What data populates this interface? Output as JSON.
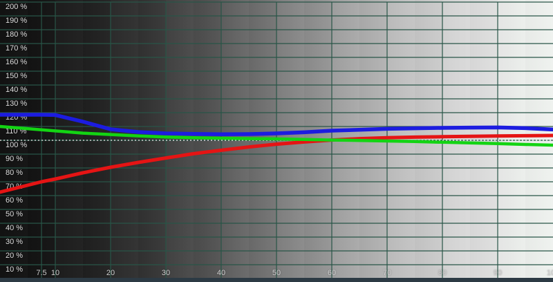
{
  "chart_data": {
    "type": "line",
    "title": "",
    "xlabel": "",
    "ylabel": "",
    "xlim": [
      0,
      100
    ],
    "ylim": [
      0,
      200
    ],
    "grid": true,
    "legend_position": "none",
    "reference_line_pct": 100,
    "x": [
      0,
      7.5,
      10,
      15,
      20,
      25,
      30,
      35,
      40,
      45,
      50,
      55,
      60,
      65,
      70,
      75,
      80,
      85,
      90,
      95,
      100
    ],
    "series": [
      {
        "name": "red",
        "color": "#e51414",
        "values": [
          62.5,
          70,
          72,
          76.5,
          80.5,
          84,
          87.2,
          90.3,
          92.8,
          95.2,
          97.2,
          98.8,
          100.2,
          101.2,
          101.9,
          102.3,
          102.6,
          102.9,
          103.1,
          103.3,
          103.5
        ]
      },
      {
        "name": "green",
        "color": "#13d413",
        "values": [
          110,
          107.6,
          106.8,
          105.2,
          104.2,
          103.2,
          102.4,
          101.9,
          101.5,
          101.2,
          101,
          100.6,
          100.2,
          99.9,
          99.5,
          99.1,
          98.6,
          98.1,
          97.6,
          97,
          96.5
        ]
      },
      {
        "name": "blue",
        "color": "#1c1ce0",
        "values": [
          118.5,
          118.5,
          118.3,
          113.5,
          108,
          106,
          105,
          104.6,
          104.4,
          104.5,
          105,
          105.8,
          107,
          107.6,
          108.3,
          108.7,
          109,
          109.2,
          109.3,
          108.8,
          107.8
        ]
      }
    ],
    "y_axis": {
      "ticks": [
        {
          "v": 200,
          "label": "200 %"
        },
        {
          "v": 190,
          "label": "190 %"
        },
        {
          "v": 180,
          "label": "180 %"
        },
        {
          "v": 170,
          "label": "170 %"
        },
        {
          "v": 160,
          "label": "160 %"
        },
        {
          "v": 150,
          "label": "150 %"
        },
        {
          "v": 140,
          "label": "140 %"
        },
        {
          "v": 130,
          "label": "130 %"
        },
        {
          "v": 120,
          "label": "120 %"
        },
        {
          "v": 110,
          "label": "110 %"
        },
        {
          "v": 100,
          "label": "100 %"
        },
        {
          "v": 90,
          "label": "90 %"
        },
        {
          "v": 80,
          "label": "80 %"
        },
        {
          "v": 70,
          "label": "70 %"
        },
        {
          "v": 60,
          "label": "60 %"
        },
        {
          "v": 50,
          "label": "50 %"
        },
        {
          "v": 40,
          "label": "40 %"
        },
        {
          "v": 30,
          "label": "30 %"
        },
        {
          "v": 20,
          "label": "20 %"
        },
        {
          "v": 10,
          "label": "10 %"
        }
      ]
    },
    "x_axis": {
      "ticks": [
        {
          "v": 7.5,
          "label": "7.5"
        },
        {
          "v": 10,
          "label": "10"
        },
        {
          "v": 20,
          "label": "20"
        },
        {
          "v": 30,
          "label": "30"
        },
        {
          "v": 40,
          "label": "40"
        },
        {
          "v": 50,
          "label": "50"
        },
        {
          "v": 60,
          "label": "60"
        },
        {
          "v": 70,
          "label": "70"
        },
        {
          "v": 80,
          "label": "80"
        },
        {
          "v": 90,
          "label": "90"
        },
        {
          "v": 100,
          "label": "100"
        }
      ]
    },
    "colors": {
      "gridline": "#285547",
      "reference_dash": "#f2f2f2",
      "bottom_border": "#2c3a44",
      "tick_label": "#d8d8d8"
    }
  }
}
